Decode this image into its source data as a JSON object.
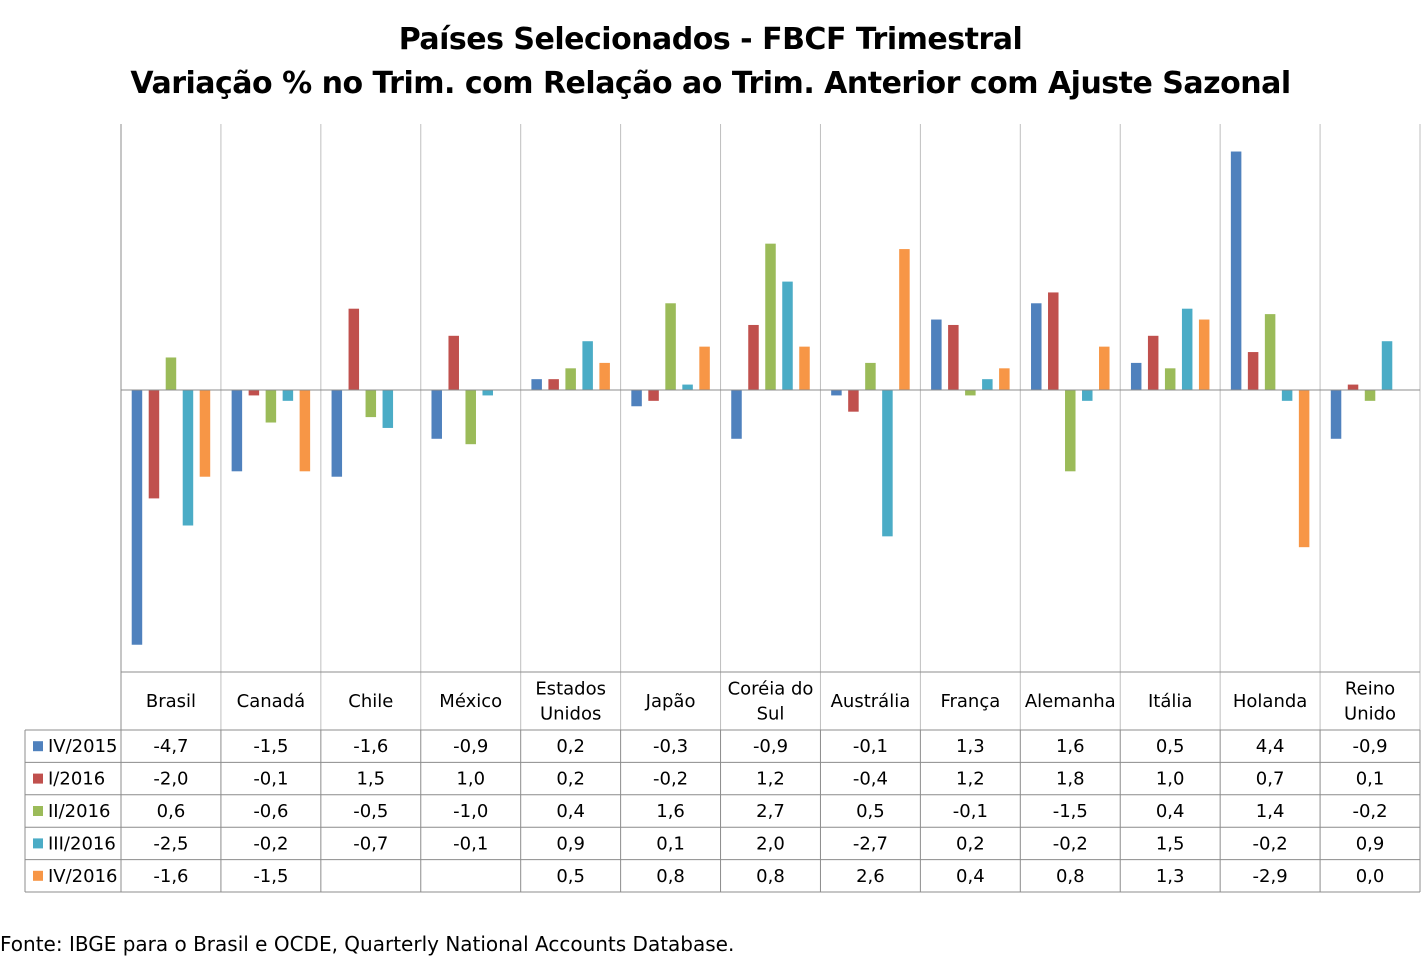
{
  "chart_data": {
    "type": "bar",
    "title": [
      "Países Selecionados - FBCF Trimestral",
      "Variação % no Trim. com Relação ao Trim. Anterior com Ajuste Sazonal"
    ],
    "categories": [
      [
        "Brasil"
      ],
      [
        "Canadá"
      ],
      [
        "Chile"
      ],
      [
        "México"
      ],
      [
        "Estados",
        "Unidos"
      ],
      [
        "Japão"
      ],
      [
        "Coréia do",
        "Sul"
      ],
      [
        "Austrália"
      ],
      [
        "França"
      ],
      [
        "Alemanha"
      ],
      [
        "Itália"
      ],
      [
        "Holanda"
      ],
      [
        "Reino",
        "Unido"
      ]
    ],
    "series": [
      {
        "name": "IV/2015",
        "color": "#4F81BD",
        "values": [
          -4.7,
          -1.5,
          -1.6,
          -0.9,
          0.2,
          -0.3,
          -0.9,
          -0.1,
          1.3,
          1.6,
          0.5,
          4.4,
          -0.9
        ],
        "labels": [
          "-4,7",
          "-1,5",
          "-1,6",
          "-0,9",
          "0,2",
          "-0,3",
          "-0,9",
          "-0,1",
          "1,3",
          "1,6",
          "0,5",
          "4,4",
          "-0,9"
        ]
      },
      {
        "name": "I/2016",
        "color": "#C0504D",
        "values": [
          -2.0,
          -0.1,
          1.5,
          1.0,
          0.2,
          -0.2,
          1.2,
          -0.4,
          1.2,
          1.8,
          1.0,
          0.7,
          0.1
        ],
        "labels": [
          "-2,0",
          "-0,1",
          "1,5",
          "1,0",
          "0,2",
          "-0,2",
          "1,2",
          "-0,4",
          "1,2",
          "1,8",
          "1,0",
          "0,7",
          "0,1"
        ]
      },
      {
        "name": "II/2016",
        "color": "#9BBB59",
        "values": [
          0.6,
          -0.6,
          -0.5,
          -1.0,
          0.4,
          1.6,
          2.7,
          0.5,
          -0.1,
          -1.5,
          0.4,
          1.4,
          -0.2
        ],
        "labels": [
          "0,6",
          "-0,6",
          "-0,5",
          "-1,0",
          "0,4",
          "1,6",
          "2,7",
          "0,5",
          "-0,1",
          "-1,5",
          "0,4",
          "1,4",
          "-0,2"
        ]
      },
      {
        "name": "III/2016",
        "color": "#4BACC6",
        "values": [
          -2.5,
          -0.2,
          -0.7,
          -0.1,
          0.9,
          0.1,
          2.0,
          -2.7,
          0.2,
          -0.2,
          1.5,
          -0.2,
          0.9
        ],
        "labels": [
          "-2,5",
          "-0,2",
          "-0,7",
          "-0,1",
          "0,9",
          "0,1",
          "2,0",
          "-2,7",
          "0,2",
          "-0,2",
          "1,5",
          "-0,2",
          "0,9"
        ]
      },
      {
        "name": "IV/2016",
        "color": "#F79646",
        "values": [
          -1.6,
          -1.5,
          null,
          null,
          0.5,
          0.8,
          0.8,
          2.6,
          0.4,
          0.8,
          1.3,
          -2.9,
          0.0
        ],
        "labels": [
          "-1,6",
          "-1,5",
          "",
          "",
          "0,5",
          "0,8",
          "0,8",
          "2,6",
          "0,4",
          "0,8",
          "1,3",
          "-2,9",
          "0,0"
        ]
      }
    ],
    "grid": "vertical category dividers",
    "legend": "data table with legend keys"
  },
  "source_note": "Fonte: IBGE para o Brasil e OCDE, Quarterly National Accounts Database."
}
